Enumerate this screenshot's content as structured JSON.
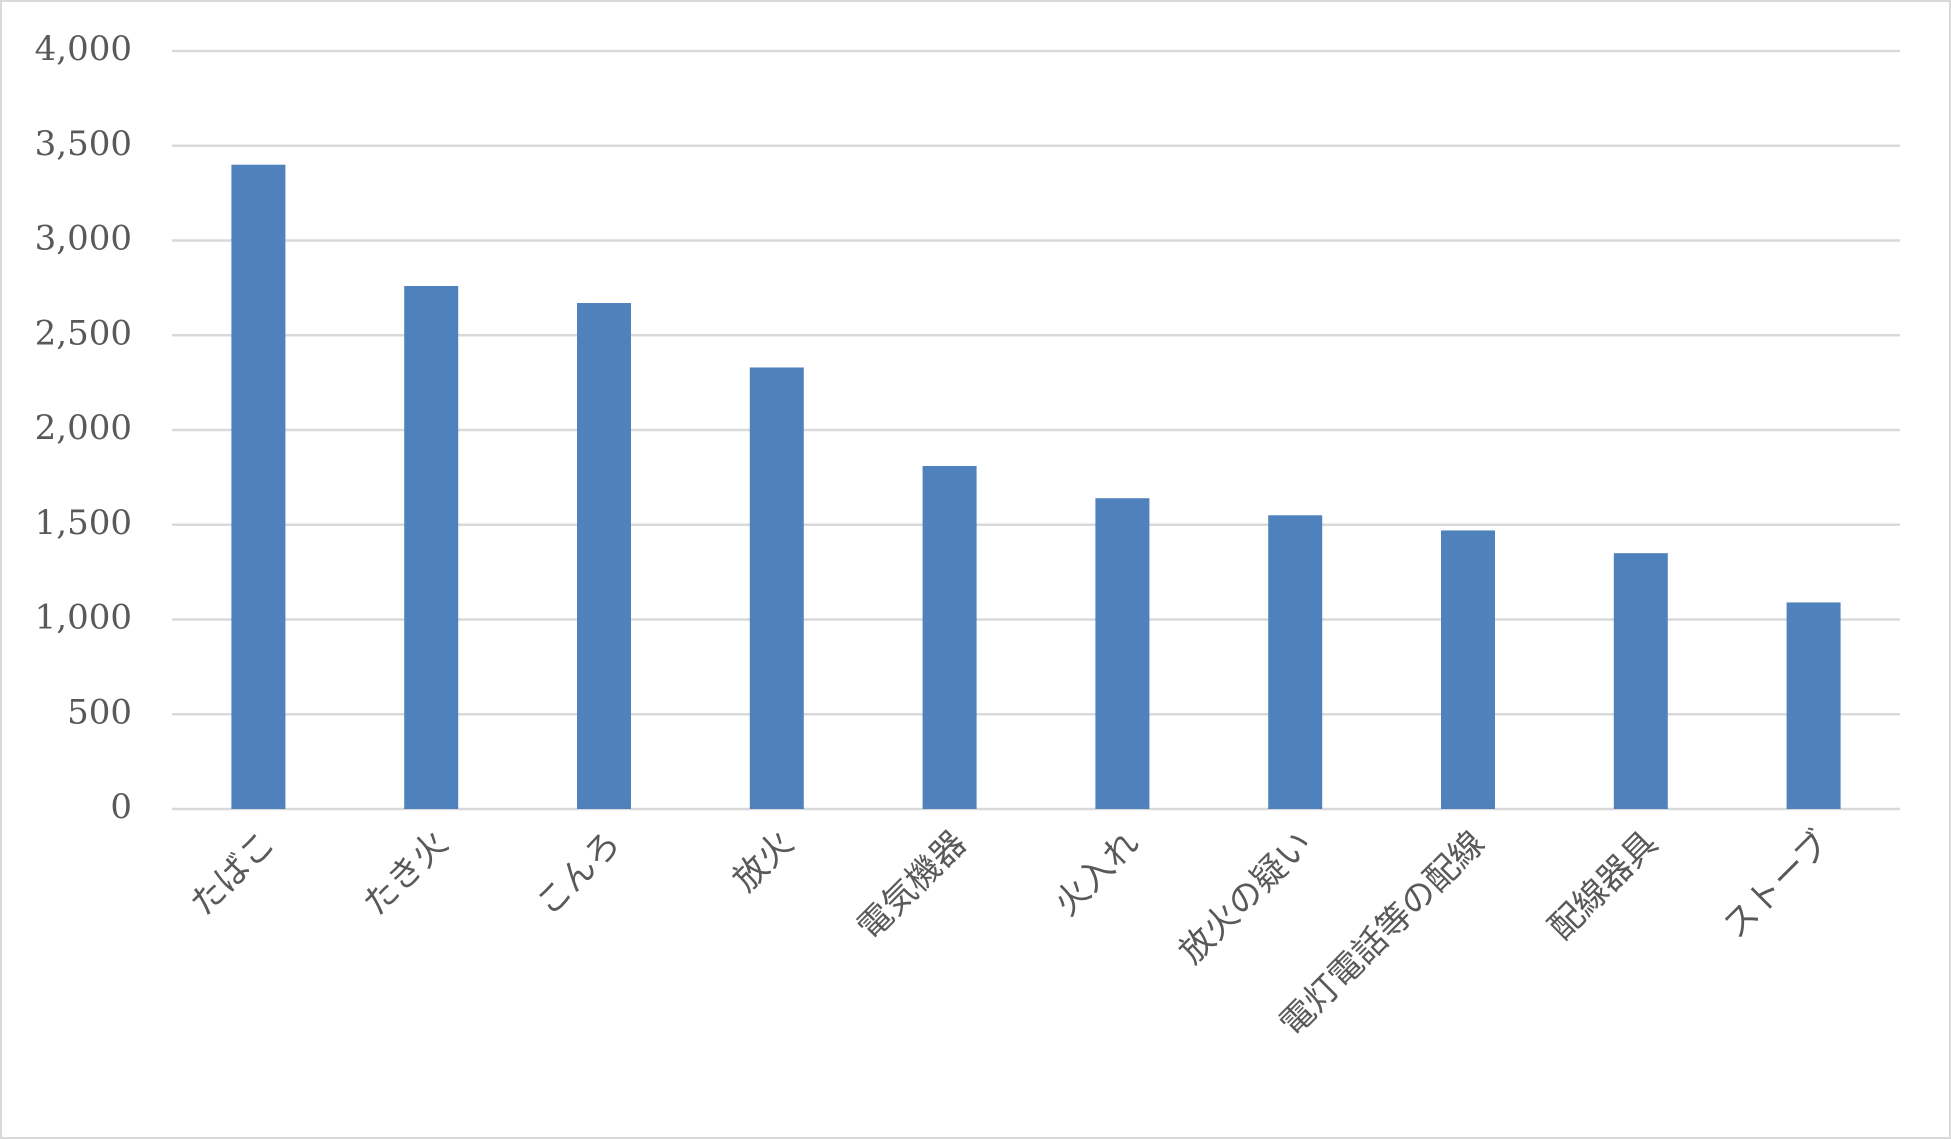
{
  "chart_data": {
    "type": "bar",
    "categories": [
      "たばこ",
      "たき火",
      "こんろ",
      "放火",
      "電気機器",
      "火入れ",
      "放火の疑い",
      "電灯電話等の配線",
      "配線器具",
      "ストーブ"
    ],
    "values": [
      3400,
      2760,
      2670,
      2330,
      1810,
      1640,
      1550,
      1470,
      1350,
      1090
    ],
    "color": "#4f81bd",
    "ylim": [
      0,
      4000
    ],
    "yticks": [
      0,
      {
        "value": 500,
        "label": "500"
      },
      {
        "value": 1000,
        "label": "1,000"
      },
      {
        "value": 1500,
        "label": "1,500"
      },
      {
        "value": 2000,
        "label": "2,000"
      },
      {
        "value": 2500,
        "label": "2,500"
      },
      {
        "value": 3000,
        "label": "3,000"
      },
      {
        "value": 3500,
        "label": "3,500"
      },
      {
        "value": 4000,
        "label": "4,000"
      }
    ],
    "grid": true
  }
}
